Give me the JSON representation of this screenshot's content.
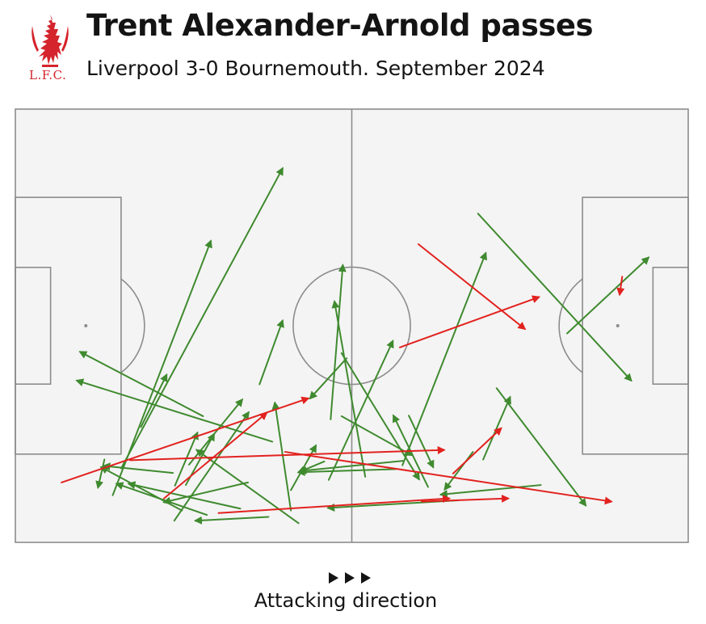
{
  "header": {
    "title": "Trent Alexander-Arnold passes",
    "subtitle": "Liverpool 3-0 Bournemouth. September 2024",
    "crest_label": "L.F.C."
  },
  "footer": {
    "direction_label": "Attacking direction"
  },
  "colors": {
    "successful": "#3f8a2f",
    "unsuccessful": "#e2221f",
    "pitch_lines": "#8c8c8c",
    "pitch_fill": "#f4f4f4",
    "crest": "#d5242c"
  },
  "icons": {
    "crest": "liverbird-crest-icon",
    "direction": "triple-play-arrows-icon"
  },
  "chart_data": {
    "type": "scatter",
    "pitch": {
      "length": 105,
      "width": 68,
      "attacking_direction": "left-to-right"
    },
    "x_unit": "metres from own goal line",
    "y_unit": "metres from top touchline",
    "passes": [
      {
        "x": 15.2,
        "y": 60.6,
        "end_x": 30.5,
        "end_y": 20.7,
        "outcome": "successful"
      },
      {
        "x": 16.5,
        "y": 56.4,
        "end_x": 41.7,
        "end_y": 9.3,
        "outcome": "successful"
      },
      {
        "x": 19.6,
        "y": 49.9,
        "end_x": 23.6,
        "end_y": 41.7,
        "outcome": "successful"
      },
      {
        "x": 29.3,
        "y": 48.2,
        "end_x": 10.1,
        "end_y": 38.1,
        "outcome": "successful"
      },
      {
        "x": 40.1,
        "y": 52.2,
        "end_x": 9.6,
        "end_y": 42.6,
        "outcome": "successful"
      },
      {
        "x": 44.2,
        "y": 65.0,
        "end_x": 28.3,
        "end_y": 53.5,
        "outcome": "successful"
      },
      {
        "x": 43.0,
        "y": 63.0,
        "end_x": 40.5,
        "end_y": 46.1,
        "outcome": "successful"
      },
      {
        "x": 38.1,
        "y": 43.2,
        "end_x": 41.7,
        "end_y": 33.2,
        "outcome": "successful"
      },
      {
        "x": 27.1,
        "y": 55.8,
        "end_x": 35.4,
        "end_y": 45.6,
        "outcome": "successful"
      },
      {
        "x": 24.6,
        "y": 57.1,
        "end_x": 13.8,
        "end_y": 56.0,
        "outcome": "successful"
      },
      {
        "x": 13.9,
        "y": 55.0,
        "end_x": 12.9,
        "end_y": 59.4,
        "outcome": "successful"
      },
      {
        "x": 26.0,
        "y": 63.0,
        "end_x": 13.4,
        "end_y": 56.2,
        "outcome": "successful"
      },
      {
        "x": 35.1,
        "y": 62.7,
        "end_x": 17.7,
        "end_y": 58.8,
        "outcome": "successful"
      },
      {
        "x": 29.9,
        "y": 63.7,
        "end_x": 15.8,
        "end_y": 58.8,
        "outcome": "successful"
      },
      {
        "x": 24.8,
        "y": 64.6,
        "end_x": 36.4,
        "end_y": 47.6,
        "outcome": "successful"
      },
      {
        "x": 39.5,
        "y": 64.0,
        "end_x": 28.1,
        "end_y": 64.6,
        "outcome": "successful"
      },
      {
        "x": 36.3,
        "y": 58.6,
        "end_x": 23.2,
        "end_y": 61.7,
        "outcome": "successful"
      },
      {
        "x": 26.6,
        "y": 59.0,
        "end_x": 31.0,
        "end_y": 51.0,
        "outcome": "successful"
      },
      {
        "x": 24.9,
        "y": 59.1,
        "end_x": 28.4,
        "end_y": 50.8,
        "outcome": "successful"
      },
      {
        "x": 43.0,
        "y": 59.8,
        "end_x": 46.9,
        "end_y": 52.8,
        "outcome": "successful"
      },
      {
        "x": 48.2,
        "y": 55.3,
        "end_x": 44.2,
        "end_y": 57.0,
        "outcome": "successful"
      },
      {
        "x": 59.4,
        "y": 56.5,
        "end_x": 44.2,
        "end_y": 57.0,
        "outcome": "successful"
      },
      {
        "x": 48.9,
        "y": 58.2,
        "end_x": 58.9,
        "end_y": 36.4,
        "outcome": "successful"
      },
      {
        "x": 51.7,
        "y": 39.1,
        "end_x": 46.0,
        "end_y": 45.4,
        "outcome": "successful"
      },
      {
        "x": 49.2,
        "y": 48.7,
        "end_x": 51.1,
        "end_y": 24.5,
        "outcome": "successful"
      },
      {
        "x": 54.6,
        "y": 57.7,
        "end_x": 49.8,
        "end_y": 30.2,
        "outcome": "successful"
      },
      {
        "x": 50.9,
        "y": 38.3,
        "end_x": 63.0,
        "end_y": 58.1,
        "outcome": "successful"
      },
      {
        "x": 60.4,
        "y": 55.9,
        "end_x": 73.4,
        "end_y": 22.6,
        "outcome": "successful"
      },
      {
        "x": 50.9,
        "y": 48.2,
        "end_x": 61.8,
        "end_y": 54.3,
        "outcome": "successful"
      },
      {
        "x": 61.4,
        "y": 48.1,
        "end_x": 65.2,
        "end_y": 56.2,
        "outcome": "successful"
      },
      {
        "x": 64.4,
        "y": 59.3,
        "end_x": 59.0,
        "end_y": 48.1,
        "outcome": "successful"
      },
      {
        "x": 71.4,
        "y": 53.8,
        "end_x": 67.0,
        "end_y": 59.7,
        "outcome": "successful"
      },
      {
        "x": 73.0,
        "y": 55.0,
        "end_x": 77.2,
        "end_y": 45.2,
        "outcome": "successful"
      },
      {
        "x": 75.1,
        "y": 43.8,
        "end_x": 89.0,
        "end_y": 62.2,
        "outcome": "successful"
      },
      {
        "x": 82.0,
        "y": 59.0,
        "end_x": 66.4,
        "end_y": 60.5,
        "outcome": "successful"
      },
      {
        "x": 72.2,
        "y": 16.4,
        "end_x": 96.1,
        "end_y": 42.6,
        "outcome": "successful"
      },
      {
        "x": 86.1,
        "y": 35.2,
        "end_x": 98.8,
        "end_y": 23.3,
        "outcome": "successful"
      },
      {
        "x": 69.1,
        "y": 61.4,
        "end_x": 48.8,
        "end_y": 62.6,
        "outcome": "successful"
      },
      {
        "x": 60.5,
        "y": 55.2,
        "end_x": 44.4,
        "end_y": 56.8,
        "outcome": "successful"
      },
      {
        "x": 7.2,
        "y": 58.6,
        "end_x": 45.7,
        "end_y": 45.4,
        "outcome": "unsuccessful"
      },
      {
        "x": 17.9,
        "y": 55.1,
        "end_x": 66.9,
        "end_y": 53.5,
        "outcome": "unsuccessful"
      },
      {
        "x": 42.1,
        "y": 53.8,
        "end_x": 93.0,
        "end_y": 61.6,
        "outcome": "unsuccessful"
      },
      {
        "x": 31.7,
        "y": 63.4,
        "end_x": 67.7,
        "end_y": 61.1,
        "outcome": "unsuccessful"
      },
      {
        "x": 63.4,
        "y": 61.6,
        "end_x": 76.9,
        "end_y": 61.1,
        "outcome": "unsuccessful"
      },
      {
        "x": 62.9,
        "y": 21.2,
        "end_x": 79.5,
        "end_y": 34.5,
        "outcome": "unsuccessful"
      },
      {
        "x": 60.0,
        "y": 37.4,
        "end_x": 81.7,
        "end_y": 29.5,
        "outcome": "unsuccessful"
      },
      {
        "x": 68.3,
        "y": 57.2,
        "end_x": 75.8,
        "end_y": 50.1,
        "outcome": "unsuccessful"
      },
      {
        "x": 23.2,
        "y": 61.1,
        "end_x": 39.2,
        "end_y": 47.7,
        "outcome": "unsuccessful"
      },
      {
        "x": 94.7,
        "y": 26.3,
        "end_x": 94.3,
        "end_y": 29.1,
        "outcome": "unsuccessful"
      }
    ]
  }
}
